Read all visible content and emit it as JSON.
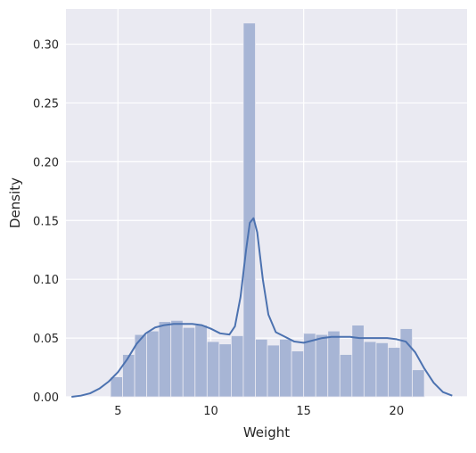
{
  "chart_data": {
    "type": "bar",
    "xlabel": "Weight",
    "ylabel": "Density",
    "xlim": [
      2.2,
      23.8
    ],
    "ylim": [
      0,
      0.33
    ],
    "xticks": [
      5,
      10,
      15,
      20
    ],
    "yticks": [
      "0.00",
      "0.05",
      "0.10",
      "0.15",
      "0.20",
      "0.25",
      "0.30"
    ],
    "histogram": {
      "bin_start": 4.6,
      "bin_width": 0.65,
      "values": [
        0.017,
        0.036,
        0.053,
        0.056,
        0.064,
        0.065,
        0.059,
        0.061,
        0.047,
        0.045,
        0.052,
        0.318,
        0.049,
        0.044,
        0.049,
        0.039,
        0.054,
        0.053,
        0.056,
        0.036,
        0.061,
        0.047,
        0.046,
        0.042,
        0.058,
        0.023
      ],
      "color": "#a7b5d5"
    },
    "kde": {
      "x": [
        2.5,
        3.0,
        3.5,
        4.0,
        4.5,
        5.0,
        5.5,
        6.0,
        6.5,
        7.0,
        7.5,
        8.0,
        8.5,
        9.0,
        9.5,
        10.0,
        10.5,
        11.0,
        11.3,
        11.6,
        11.9,
        12.1,
        12.3,
        12.5,
        12.8,
        13.1,
        13.5,
        14.0,
        14.5,
        15.0,
        15.5,
        16.0,
        16.5,
        17.0,
        17.5,
        18.0,
        18.5,
        19.0,
        19.5,
        20.0,
        20.5,
        21.0,
        21.5,
        22.0,
        22.5,
        23.0
      ],
      "y": [
        0.0,
        0.001,
        0.003,
        0.007,
        0.013,
        0.021,
        0.032,
        0.045,
        0.054,
        0.059,
        0.061,
        0.062,
        0.062,
        0.062,
        0.061,
        0.058,
        0.054,
        0.053,
        0.06,
        0.085,
        0.125,
        0.148,
        0.152,
        0.14,
        0.1,
        0.07,
        0.055,
        0.051,
        0.047,
        0.046,
        0.048,
        0.05,
        0.051,
        0.051,
        0.051,
        0.05,
        0.05,
        0.05,
        0.05,
        0.049,
        0.047,
        0.038,
        0.024,
        0.012,
        0.004,
        0.001
      ],
      "color": "#4c72b0"
    },
    "grid": true,
    "background": "#eaeaf2"
  }
}
